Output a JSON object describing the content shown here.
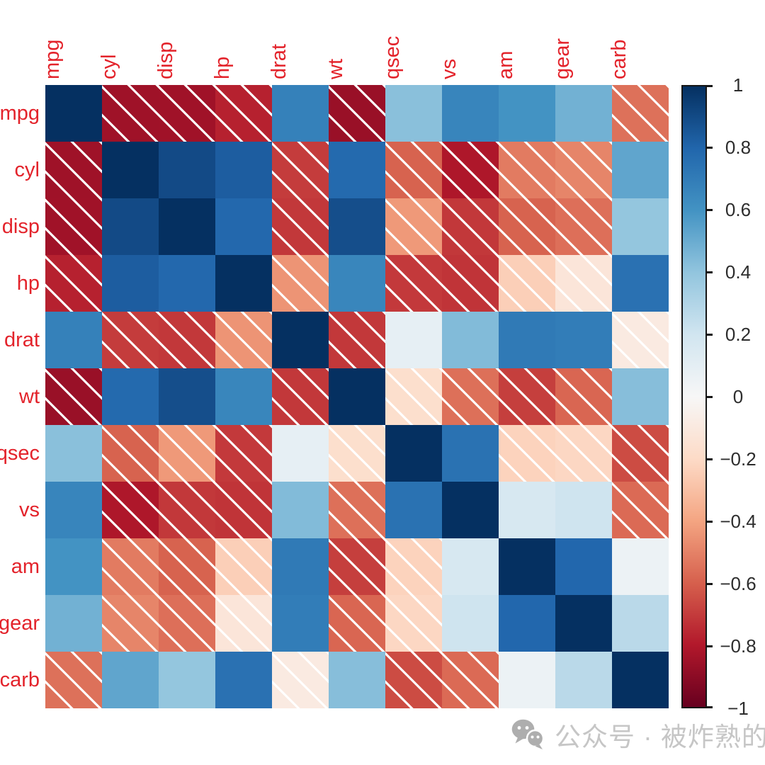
{
  "figure": {
    "background": "#ffffff"
  },
  "chart_data": {
    "type": "heatmap",
    "title": "",
    "variables": [
      "mpg",
      "cyl",
      "disp",
      "hp",
      "drat",
      "wt",
      "qsec",
      "vs",
      "am",
      "gear",
      "carb"
    ],
    "matrix": [
      [
        1.0,
        -0.852,
        -0.848,
        -0.776,
        0.681,
        -0.868,
        0.419,
        0.664,
        0.6,
        0.48,
        -0.551
      ],
      [
        -0.852,
        1.0,
        0.902,
        0.832,
        -0.7,
        0.782,
        -0.591,
        -0.811,
        -0.523,
        -0.493,
        0.527
      ],
      [
        -0.848,
        0.902,
        1.0,
        0.791,
        -0.71,
        0.888,
        -0.434,
        -0.71,
        -0.591,
        -0.556,
        0.395
      ],
      [
        -0.776,
        0.832,
        0.791,
        1.0,
        -0.449,
        0.659,
        -0.708,
        -0.723,
        -0.243,
        -0.126,
        0.75
      ],
      [
        0.681,
        -0.7,
        -0.71,
        -0.449,
        1.0,
        -0.712,
        0.091,
        0.44,
        0.713,
        0.7,
        -0.091
      ],
      [
        -0.868,
        0.782,
        0.888,
        0.659,
        -0.712,
        1.0,
        -0.175,
        -0.555,
        -0.692,
        -0.583,
        0.428
      ],
      [
        0.419,
        -0.591,
        -0.434,
        -0.708,
        0.091,
        -0.175,
        1.0,
        0.745,
        -0.23,
        -0.213,
        -0.656
      ],
      [
        0.664,
        -0.811,
        -0.71,
        -0.723,
        0.44,
        -0.555,
        0.745,
        1.0,
        0.168,
        0.206,
        -0.57
      ],
      [
        0.6,
        -0.523,
        -0.591,
        -0.243,
        0.713,
        -0.692,
        -0.23,
        0.168,
        1.0,
        0.794,
        0.058
      ],
      [
        0.48,
        -0.493,
        -0.556,
        -0.126,
        0.7,
        -0.583,
        -0.213,
        0.206,
        0.794,
        1.0,
        0.274
      ],
      [
        -0.551,
        0.527,
        0.395,
        0.75,
        -0.091,
        0.428,
        -0.656,
        -0.57,
        0.058,
        0.274,
        1.0
      ]
    ],
    "colormap": {
      "name": "RdBu",
      "domain": [
        -1,
        1
      ],
      "stops": [
        "#67001f",
        "#b2182b",
        "#d6604d",
        "#f4a582",
        "#fddbc7",
        "#f7f7f7",
        "#d1e5f0",
        "#92c5de",
        "#4393c3",
        "#2166ac",
        "#053061"
      ]
    },
    "hatch": {
      "applies_to": "negative values",
      "direction": "diagonal-down",
      "color": "#ffffff"
    },
    "axis_label_color": "#e3232b",
    "legend_position": "right",
    "colorbar": {
      "tick_values": [
        1,
        0.8,
        0.6,
        0.4,
        0.2,
        0,
        -0.2,
        -0.4,
        -0.6,
        -0.8,
        -1
      ],
      "tick_labels": [
        "1",
        "0.8",
        "0.6",
        "0.4",
        "0.2",
        "0",
        "−0.2",
        "−0.4",
        "−0.6",
        "−0.8",
        "−1"
      ]
    }
  },
  "watermark": {
    "text": "公众号 · 被炸熟的虾",
    "icon": "wechat-icon",
    "icon_color": "#aeaeae",
    "text_color": "#c6c6c6"
  }
}
